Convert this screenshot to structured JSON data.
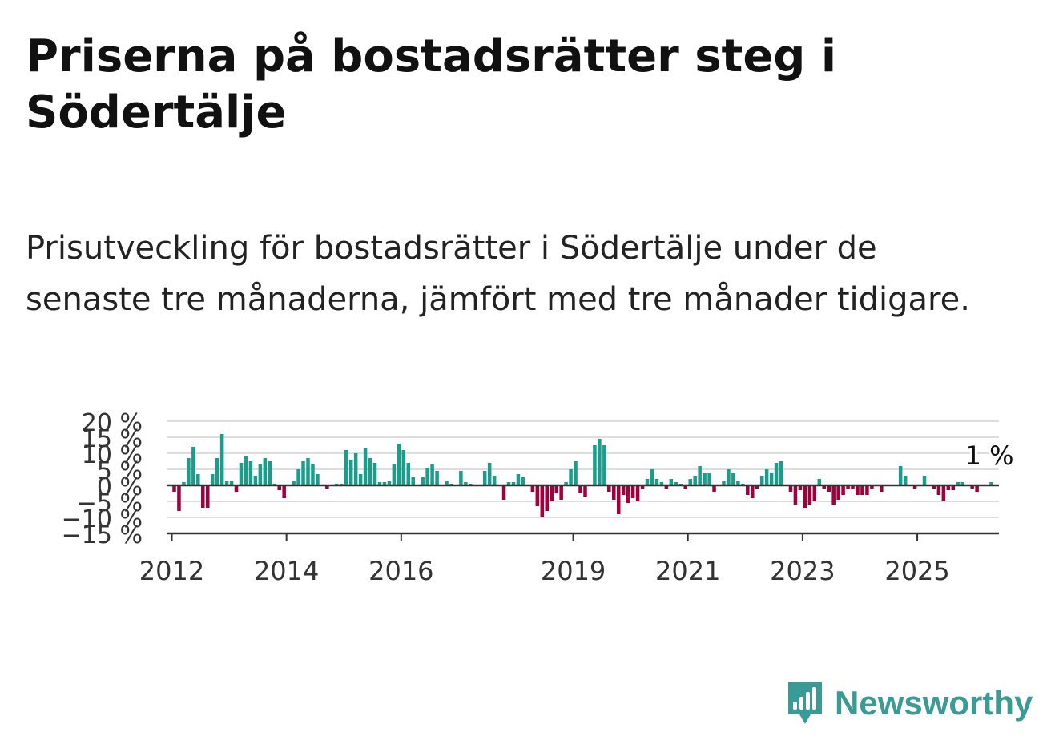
{
  "title": "Priserna på bostadsrätter steg i Södertälje",
  "subtitle": "Prisutveckling för bostadsrätter i Södertälje under de senaste tre månaderna, jämfört med tre månader tidigare.",
  "brand": {
    "name": "Newsworthy",
    "icon": "newsworthy-logo-icon"
  },
  "colors": {
    "positive": "#1a9e8c",
    "negative": "#a0003e",
    "grid": "#dddddd",
    "axis": "#333333",
    "brand": "#3a9b95"
  },
  "chart_data": {
    "type": "bar",
    "title": "",
    "xlabel": "",
    "ylabel": "",
    "ylim": [
      -15,
      20
    ],
    "yticks": [
      20,
      15,
      10,
      5,
      0,
      -5,
      -10,
      -15
    ],
    "ytick_labels": [
      "20 %",
      "15 %",
      "10 %",
      "5 %",
      "0 %",
      "−5 %",
      "−10 %",
      "−15 %"
    ],
    "xticks": [
      2012,
      2014,
      2016,
      2019,
      2021,
      2023,
      2025
    ],
    "xtick_labels": [
      "2012",
      "2014",
      "2016",
      "2019",
      "2021",
      "2023",
      "2025"
    ],
    "grid": true,
    "annotation": {
      "text": "1 %",
      "target": "last"
    },
    "start": "2012-01",
    "frequency": "monthly",
    "values": [
      -2,
      -8,
      1,
      8.5,
      12,
      3.5,
      -7,
      -7,
      3.5,
      8.5,
      16,
      1.5,
      1.5,
      -2,
      7,
      9,
      7.5,
      3,
      6.5,
      8.5,
      7.5,
      0.5,
      -1.5,
      -4,
      0,
      1.5,
      5,
      7.5,
      8.5,
      6.5,
      3.5,
      0,
      -1,
      0,
      0.5,
      0.5,
      11,
      8,
      10,
      3.5,
      11.5,
      8.5,
      7,
      1,
      1,
      1.5,
      6.5,
      13,
      11,
      7,
      2.5,
      0,
      2.5,
      5.5,
      6.5,
      4.5,
      0,
      1.5,
      0.5,
      0,
      4.5,
      1,
      0.5,
      0,
      0,
      4.5,
      7,
      3,
      0,
      -4.5,
      1,
      1,
      3.5,
      2.5,
      0,
      -2,
      -6.5,
      -10,
      -8,
      -5,
      -2.5,
      -4.5,
      1,
      5,
      7.5,
      -2.5,
      -3.5,
      0,
      12.5,
      14.5,
      12.5,
      -2,
      -4.5,
      -9,
      -3,
      -5.5,
      -4,
      -5,
      -1,
      2,
      5,
      2,
      1,
      -1,
      2,
      1,
      0.5,
      -1,
      2,
      3,
      6,
      4,
      4,
      -2,
      0,
      1.5,
      5,
      4,
      1.5,
      0.5,
      -3,
      -4,
      -1,
      3,
      5,
      4,
      7,
      7.5,
      0,
      -2,
      -6,
      -1.5,
      -7,
      -6,
      -5,
      2,
      -1,
      -2,
      -6,
      -4.5,
      -3,
      -1,
      -1,
      -3,
      -3,
      -3,
      -1,
      0,
      -2,
      0,
      0,
      0,
      6,
      3,
      0,
      -1,
      0,
      3,
      0,
      -1,
      -3,
      -5,
      -1.5,
      -1.5,
      1,
      1,
      0,
      -1,
      -2,
      0,
      0,
      1
    ]
  }
}
